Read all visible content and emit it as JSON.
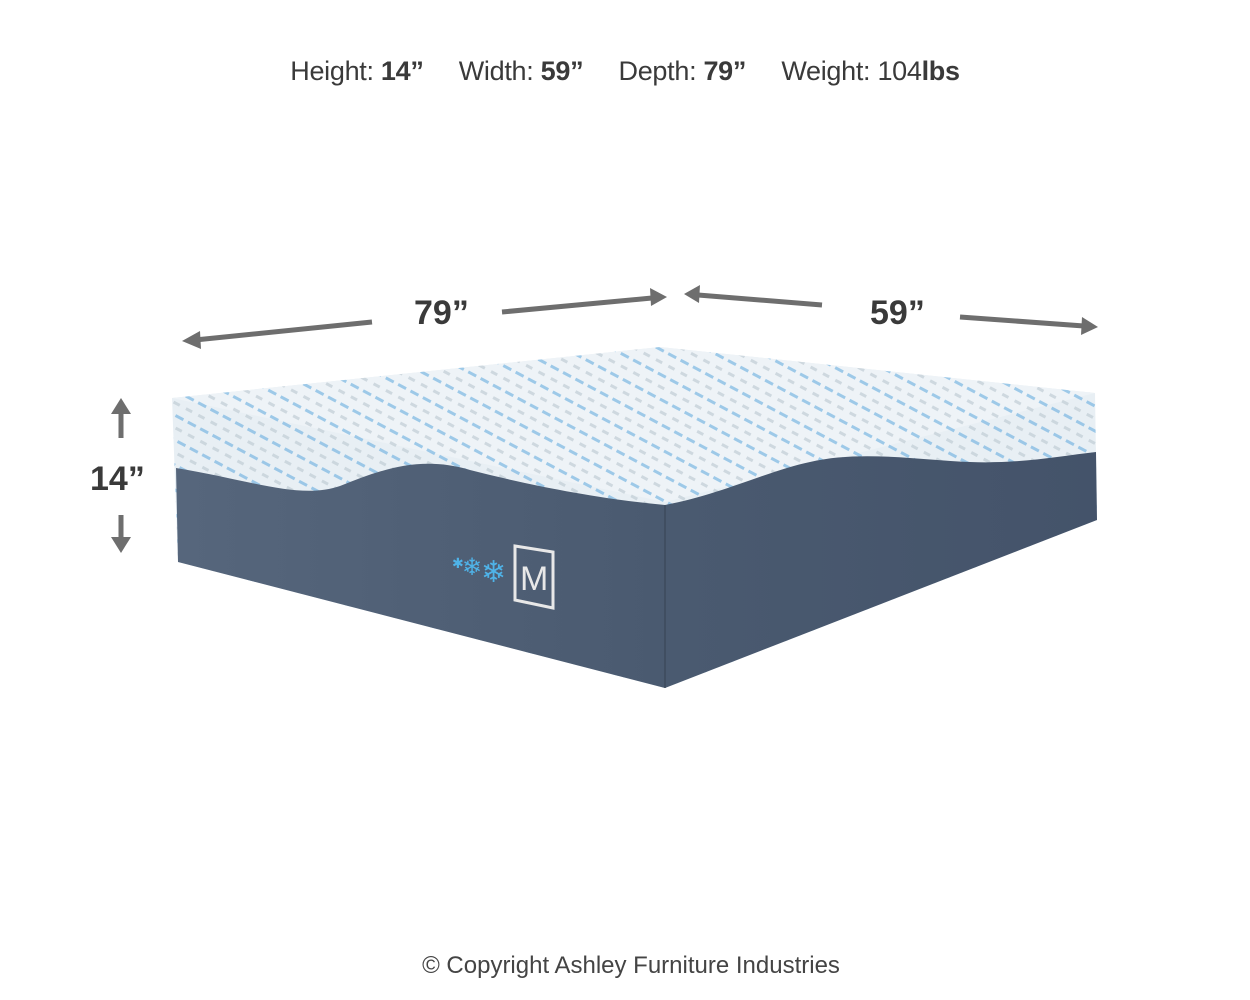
{
  "specs": [
    {
      "label": "Height:",
      "value": "14”"
    },
    {
      "label": "Width:",
      "value": "59”"
    },
    {
      "label": "Depth:",
      "value": "79”"
    },
    {
      "label": "Weight: 104",
      "value": "lbs"
    }
  ],
  "dimensions": {
    "length": "79”",
    "width": "59”",
    "height": "14”"
  },
  "logo": {
    "letter": "M"
  },
  "colors": {
    "cover": "#e6eef3",
    "pattern": "#3a8fd0",
    "base": "#4a5a70",
    "arrow": "#6e6e6e",
    "snowflake": "#4fb3e8"
  },
  "copyright": "© Copyright Ashley Furniture Industries"
}
